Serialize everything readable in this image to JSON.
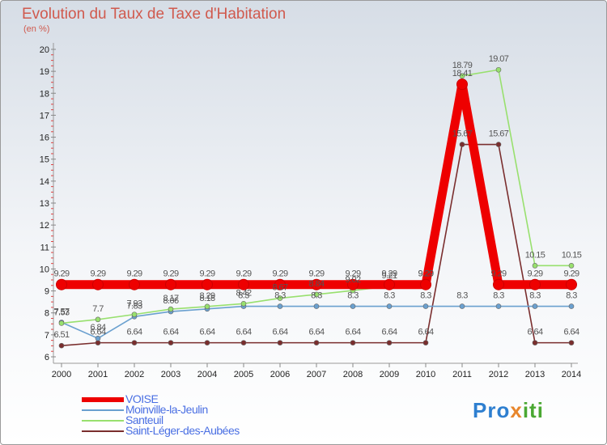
{
  "title": "Evolution du Taux de Taxe d'Habitation",
  "subtitle": "(en %)",
  "logo": {
    "p1": "Pro",
    "p2": "x",
    "p3": "iti"
  },
  "chart_data": {
    "type": "line",
    "title": "Evolution du Taux de Taxe d'Habitation",
    "ylabel": "(en %)",
    "xlabel": "",
    "ylim": [
      6,
      20
    ],
    "yticks": [
      6,
      7,
      8,
      9,
      10,
      11,
      12,
      13,
      14,
      15,
      16,
      17,
      18,
      19,
      20
    ],
    "categories": [
      "2000",
      "2001",
      "2002",
      "2003",
      "2004",
      "2005",
      "2006",
      "2007",
      "2008",
      "2009",
      "2010",
      "2011",
      "2012",
      "2013",
      "2014"
    ],
    "series": [
      {
        "name": "VOISE",
        "color": "#ee0000",
        "values": [
          9.29,
          9.29,
          9.29,
          9.29,
          9.29,
          9.29,
          9.29,
          9.29,
          9.29,
          9.29,
          9.29,
          18.41,
          9.29,
          9.29,
          9.29
        ],
        "labels": [
          "9.29",
          "9.29",
          "9.29",
          "9.29",
          "9.29",
          "9.29",
          "9.29",
          "9.29",
          "9.29",
          "9.29",
          "9.29",
          "18.41",
          "9.29",
          "9.29",
          "9.29"
        ]
      },
      {
        "name": "Moinville-la-Jeulin",
        "color": "#6aa0cf",
        "values": [
          7.57,
          6.84,
          7.83,
          8.06,
          8.18,
          8.3,
          8.3,
          8.3,
          8.3,
          8.3,
          8.3,
          8.3,
          8.3,
          8.3,
          8.3
        ],
        "labels": [
          "7.57",
          "6.84",
          "7.83",
          "8.06",
          "8.18",
          "8.3",
          "8.3",
          "8.3",
          "8.3",
          "8.3",
          "8.3",
          "8.3",
          "8.3",
          "8.3",
          "8.3"
        ]
      },
      {
        "name": "Santeuil",
        "color": "#98e06e",
        "values": [
          7.53,
          7.7,
          7.93,
          8.17,
          8.29,
          8.42,
          8.67,
          8.84,
          9.02,
          9.21,
          9.29,
          18.79,
          19.07,
          10.15,
          10.15
        ],
        "labels": [
          "7.53",
          "7.7",
          "7.93",
          "8.17",
          "8.29",
          "8.42",
          "8.67",
          "8.84",
          "9.02",
          "9.21",
          "9.29",
          "18.79",
          "19.07",
          "10.15",
          "10.15"
        ]
      },
      {
        "name": "Saint-Léger-des-Aubées",
        "color": "#7a2e2e",
        "values": [
          6.51,
          6.64,
          6.64,
          6.64,
          6.64,
          6.64,
          6.64,
          6.64,
          6.64,
          6.64,
          6.64,
          15.67,
          15.67,
          6.64,
          6.64
        ],
        "labels": [
          "6.51",
          "6.64",
          "6.64",
          "6.64",
          "6.64",
          "6.64",
          "6.64",
          "6.64",
          "6.64",
          "6.64",
          "6.64",
          "15.67",
          "15.67",
          "6.64",
          "6.64"
        ]
      }
    ]
  }
}
